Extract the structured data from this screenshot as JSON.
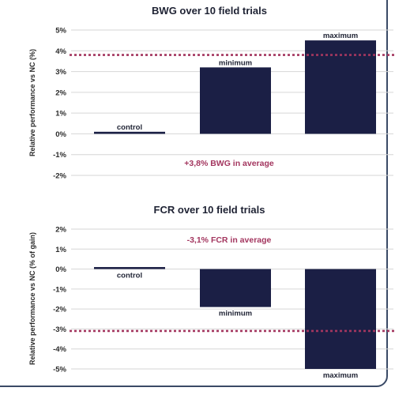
{
  "colors": {
    "bar": "#1b1f45",
    "average_line": "#a3365f",
    "annotation": "#a3365f",
    "grid": "#d6d6d6",
    "frame": "#3a4a66"
  },
  "chart_data": [
    {
      "type": "bar",
      "title": "BWG over 10 field trials",
      "ylabel": "Relative performance vs NC (%)",
      "xlabel": "",
      "categories": [
        "control",
        "minimum",
        "maximum"
      ],
      "values": [
        0.1,
        3.2,
        4.5
      ],
      "ylim": [
        -2,
        5
      ],
      "yticks": [
        "-2%",
        "-1%",
        "0%",
        "1%",
        "2%",
        "3%",
        "4%",
        "5%"
      ],
      "average": 3.8,
      "annotation": "+3,8% BWG in average",
      "grid": true,
      "legend": "none"
    },
    {
      "type": "bar",
      "title": "FCR over 10 field trials",
      "ylabel": "Relative performance vs NC (% of gain)",
      "xlabel": "",
      "categories": [
        "control",
        "minimum",
        "maximum"
      ],
      "values": [
        0.1,
        -1.9,
        -5.0
      ],
      "ylim": [
        -5,
        2
      ],
      "yticks": [
        "-5%",
        "-4%",
        "-3%",
        "-2%",
        "-1%",
        "0%",
        "1%",
        "2%"
      ],
      "average": -3.1,
      "annotation": "-3,1% FCR in average",
      "grid": true,
      "legend": "none"
    }
  ]
}
